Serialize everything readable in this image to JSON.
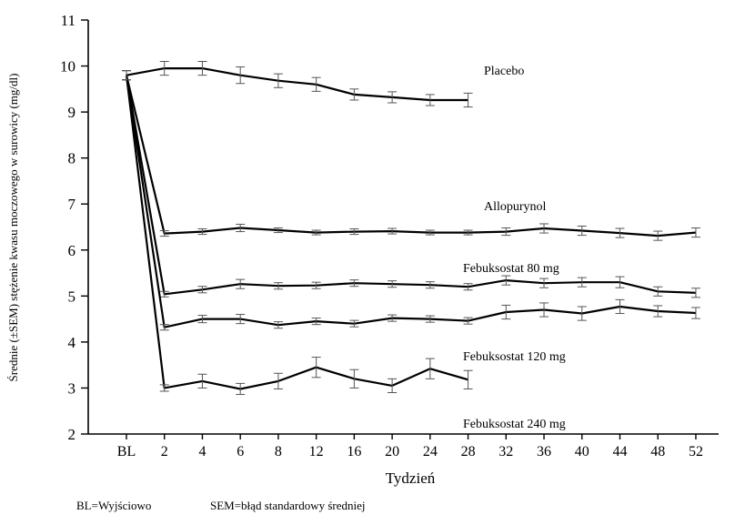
{
  "chart_data": {
    "type": "line",
    "xlabel": "Tydzień",
    "ylabel": "Średnie (±SEM) stężenie kwasu moczowego w surowicy (mg/dl)",
    "categories": [
      "BL",
      "2",
      "4",
      "6",
      "8",
      "12",
      "16",
      "20",
      "24",
      "28",
      "32",
      "36",
      "40",
      "44",
      "48",
      "52"
    ],
    "ylim": [
      2,
      11
    ],
    "yticks": [
      "2",
      "3",
      "4",
      "5",
      "6",
      "7",
      "8",
      "9",
      "10",
      "11"
    ],
    "grid": false,
    "series": [
      {
        "name": "Placebo",
        "values": [
          9.8,
          9.95,
          9.95,
          9.8,
          9.68,
          9.6,
          9.38,
          9.32,
          9.26,
          9.26,
          null,
          null,
          null,
          null,
          null,
          null
        ],
        "errors": [
          0.1,
          0.15,
          0.15,
          0.18,
          0.15,
          0.15,
          0.12,
          0.12,
          0.12,
          0.15,
          null,
          null,
          null,
          null,
          null,
          null
        ]
      },
      {
        "name": "Allopurynol",
        "values": [
          9.8,
          6.36,
          6.4,
          6.48,
          6.43,
          6.38,
          6.4,
          6.41,
          6.38,
          6.38,
          6.4,
          6.47,
          6.42,
          6.37,
          6.31,
          6.38
        ],
        "errors": [
          0.1,
          0.06,
          0.06,
          0.08,
          0.05,
          0.05,
          0.06,
          0.06,
          0.05,
          0.05,
          0.08,
          0.1,
          0.1,
          0.1,
          0.1,
          0.1
        ]
      },
      {
        "name": "Febuksostat 80 mg",
        "values": [
          9.8,
          5.04,
          5.14,
          5.26,
          5.22,
          5.23,
          5.28,
          5.26,
          5.24,
          5.2,
          5.34,
          5.28,
          5.3,
          5.3,
          5.1,
          5.07
        ],
        "errors": [
          0.1,
          0.06,
          0.07,
          0.1,
          0.07,
          0.07,
          0.07,
          0.07,
          0.07,
          0.07,
          0.1,
          0.1,
          0.1,
          0.12,
          0.1,
          0.1
        ]
      },
      {
        "name": "Febuksostat 120 mg",
        "values": [
          9.8,
          4.32,
          4.5,
          4.5,
          4.37,
          4.45,
          4.4,
          4.52,
          4.5,
          4.46,
          4.65,
          4.7,
          4.62,
          4.77,
          4.67,
          4.63
        ],
        "errors": [
          0.1,
          0.06,
          0.08,
          0.1,
          0.07,
          0.07,
          0.07,
          0.07,
          0.07,
          0.07,
          0.15,
          0.15,
          0.15,
          0.15,
          0.12,
          0.12
        ]
      },
      {
        "name": "Febuksostat 240 mg",
        "values": [
          9.8,
          3.0,
          3.15,
          2.98,
          3.15,
          3.45,
          3.2,
          3.05,
          3.42,
          3.18,
          null,
          null,
          null,
          null,
          null,
          null
        ],
        "errors": [
          0.1,
          0.07,
          0.15,
          0.12,
          0.17,
          0.22,
          0.2,
          0.15,
          0.22,
          0.2,
          null,
          null,
          null,
          null,
          null,
          null
        ]
      }
    ]
  },
  "footnote": {
    "bl": "BL=Wyjściowo",
    "sem": "SEM=błąd standardowy średniej"
  }
}
